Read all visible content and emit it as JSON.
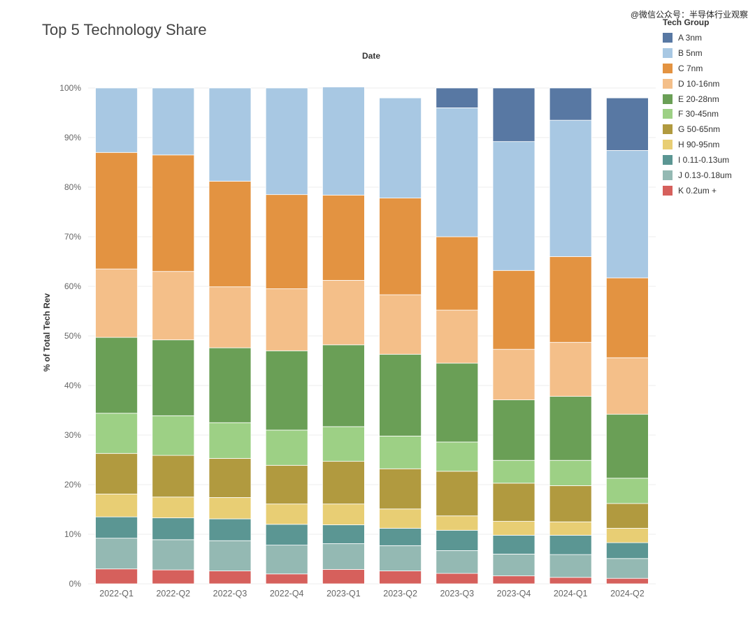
{
  "page": {
    "title": "Top 5 Technology Share",
    "watermark": "@微信公众号：半导体行业观察"
  },
  "chart_data": {
    "type": "bar",
    "stacked": true,
    "title": "Top 5 Technology Share",
    "xlabel": "Date",
    "ylabel": "% of Total Tech Rev",
    "ylim": [
      0,
      100
    ],
    "y_ticks": [
      "0%",
      "10%",
      "20%",
      "30%",
      "40%",
      "50%",
      "60%",
      "70%",
      "80%",
      "90%",
      "100%"
    ],
    "legend_title": "Tech Group",
    "legend_position": "right",
    "categories": [
      "2022-Q1",
      "2022-Q2",
      "2022-Q3",
      "2022-Q4",
      "2023-Q1",
      "2023-Q2",
      "2023-Q3",
      "2023-Q4",
      "2024-Q1",
      "2024-Q2"
    ],
    "series": [
      {
        "name": "A 3nm",
        "color": "#5878a3",
        "values": [
          0,
          0,
          0,
          0,
          0,
          0,
          4.0,
          10.8,
          6.5,
          10.6
        ]
      },
      {
        "name": "B 5nm",
        "color": "#a8c8e3",
        "values": [
          13.0,
          13.5,
          18.8,
          21.5,
          21.8,
          20.2,
          26.0,
          26.0,
          27.5,
          25.7
        ]
      },
      {
        "name": "C 7nm",
        "color": "#e39341",
        "values": [
          23.5,
          23.5,
          21.3,
          19.0,
          17.2,
          19.5,
          14.8,
          15.9,
          17.3,
          16.1
        ]
      },
      {
        "name": "D 10-16nm",
        "color": "#f4bf89",
        "values": [
          13.8,
          13.8,
          12.3,
          12.5,
          13.0,
          12.0,
          10.7,
          10.2,
          10.9,
          11.4
        ]
      },
      {
        "name": "E 20-28nm",
        "color": "#6a9f56",
        "values": [
          15.3,
          15.3,
          15.1,
          16.0,
          16.5,
          16.5,
          15.9,
          12.2,
          12.9,
          12.9
        ]
      },
      {
        "name": "F 30-45nm",
        "color": "#9dd085",
        "values": [
          8.1,
          8.0,
          7.2,
          7.1,
          7.0,
          6.6,
          5.9,
          4.6,
          5.1,
          5.1
        ]
      },
      {
        "name": "G 50-65nm",
        "color": "#b19a3f",
        "values": [
          8.2,
          8.4,
          7.9,
          7.8,
          8.6,
          8.1,
          9.0,
          7.7,
          7.3,
          5.0
        ]
      },
      {
        "name": "H 90-95nm",
        "color": "#e8ce74",
        "values": [
          4.6,
          4.2,
          4.3,
          4.1,
          4.2,
          3.9,
          2.9,
          2.8,
          2.7,
          2.9
        ]
      },
      {
        "name": "I 0.11-0.13um",
        "color": "#5b9693",
        "values": [
          4.3,
          4.4,
          4.4,
          4.2,
          3.8,
          3.5,
          4.1,
          3.8,
          3.9,
          3.2
        ]
      },
      {
        "name": "J 0.13-0.18um",
        "color": "#94b9b3",
        "values": [
          6.2,
          6.1,
          6.1,
          5.8,
          5.2,
          5.1,
          4.6,
          4.4,
          4.6,
          4.0
        ]
      },
      {
        "name": "K 0.2um +",
        "color": "#d6605c",
        "values": [
          3.0,
          2.8,
          2.6,
          2.0,
          2.9,
          2.6,
          2.1,
          1.6,
          1.3,
          1.1
        ]
      }
    ]
  }
}
